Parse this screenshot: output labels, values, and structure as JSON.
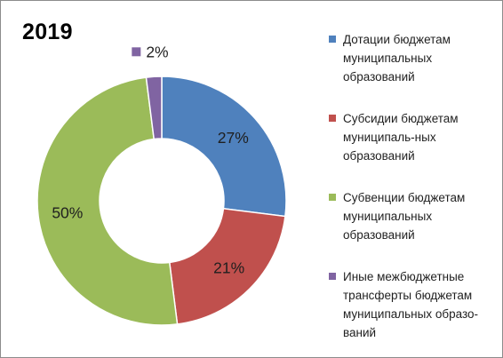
{
  "chart_data": {
    "type": "pie",
    "title": "2019",
    "variant": "donut",
    "categories": [
      "Дотации бюджетам муниципальных образований",
      "Субсидии бюджетам муниципаль-ных образований",
      "Субвенции бюджетам муниципальных образований",
      "Иные межбюджетные трансферты бюджетам муниципальных образо-ваний"
    ],
    "legend_lines": [
      "Дотации бюджетам\nмуниципальных\nобразований",
      "Субсидии бюджетам\nмуниципаль-ных\nобразований",
      "Субвенции бюджетам\nмуниципальных\nобразований",
      "Иные межбюджетные\nтрансферты бюджетам\nмуниципальных образо-\nваний"
    ],
    "values": [
      27,
      21,
      50,
      2
    ],
    "labels": [
      "27%",
      "21%",
      "50%",
      "2%"
    ],
    "unit": "%",
    "colors": [
      "#4f81bd",
      "#c0504d",
      "#9bbb59",
      "#8064a2"
    ],
    "legend_position": "right"
  }
}
